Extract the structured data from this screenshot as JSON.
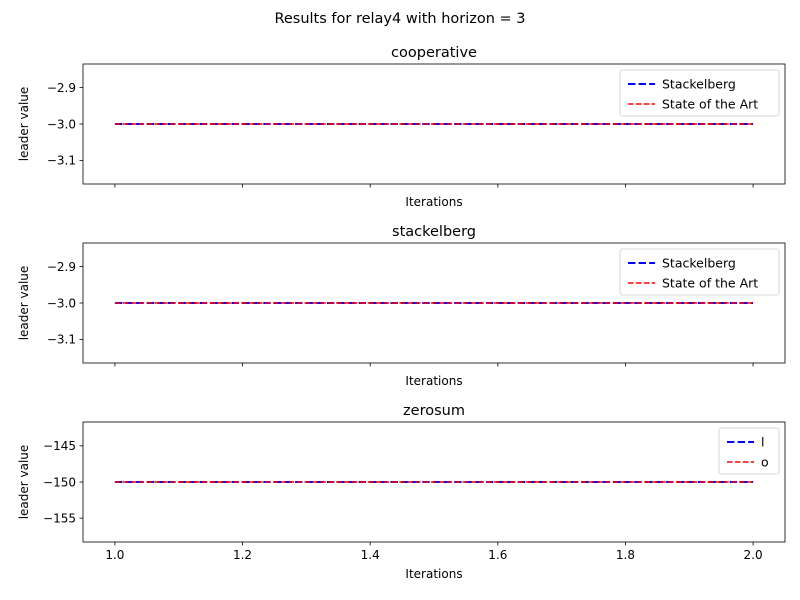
{
  "figure": {
    "suptitle": "Results for relay4 with horizon = 3"
  },
  "chart_data": [
    {
      "type": "line",
      "title": "cooperative",
      "xlabel": "Iterations",
      "ylabel": "leader value",
      "x": [
        1.0,
        2.0
      ],
      "xlim": [
        0.95,
        2.05
      ],
      "ylim": [
        -3.165,
        -2.835
      ],
      "xticks": [
        1.0,
        1.2,
        1.4,
        1.6,
        1.8,
        2.0
      ],
      "xtick_labels": [
        "",
        "",
        "",
        "",
        "",
        ""
      ],
      "yticks": [
        -2.9,
        -3.0,
        -3.1
      ],
      "ytick_labels": [
        "−2.9",
        "−3.0",
        "−3.1"
      ],
      "series": [
        {
          "name": "Stackelberg",
          "values": [
            -3.0,
            -3.0
          ],
          "color": "#0000ff",
          "style": "dashed-thick"
        },
        {
          "name": "State of the Art",
          "values": [
            -3.0,
            -3.0
          ],
          "color": "#ff0000",
          "style": "dashed"
        }
      ],
      "legend": "top-right",
      "grid": false
    },
    {
      "type": "line",
      "title": "stackelberg",
      "xlabel": "Iterations",
      "ylabel": "leader value",
      "x": [
        1.0,
        2.0
      ],
      "xlim": [
        0.95,
        2.05
      ],
      "ylim": [
        -3.165,
        -2.835
      ],
      "xticks": [
        1.0,
        1.2,
        1.4,
        1.6,
        1.8,
        2.0
      ],
      "xtick_labels": [
        "",
        "",
        "",
        "",
        "",
        ""
      ],
      "yticks": [
        -2.9,
        -3.0,
        -3.1
      ],
      "ytick_labels": [
        "−2.9",
        "−3.0",
        "−3.1"
      ],
      "series": [
        {
          "name": "Stackelberg",
          "values": [
            -3.0,
            -3.0
          ],
          "color": "#0000ff",
          "style": "dashed-thick"
        },
        {
          "name": "State of the Art",
          "values": [
            -3.0,
            -3.0
          ],
          "color": "#ff0000",
          "style": "dashed"
        }
      ],
      "legend": "top-right",
      "grid": false
    },
    {
      "type": "line",
      "title": "zerosum",
      "xlabel": "Iterations",
      "ylabel": "leader value",
      "x": [
        1.0,
        2.0
      ],
      "xlim": [
        0.95,
        2.05
      ],
      "ylim": [
        -158.3,
        -141.7
      ],
      "xticks": [
        1.0,
        1.2,
        1.4,
        1.6,
        1.8,
        2.0
      ],
      "xtick_labels": [
        "1.0",
        "1.2",
        "1.4",
        "1.6",
        "1.8",
        "2.0"
      ],
      "yticks": [
        -145,
        -150,
        -155
      ],
      "ytick_labels": [
        "−145",
        "−150",
        "−155"
      ],
      "series": [
        {
          "name": "l",
          "values": [
            -150,
            -150
          ],
          "color": "#0000ff",
          "style": "dashed-thick"
        },
        {
          "name": "o",
          "values": [
            -150,
            -150
          ],
          "color": "#ff0000",
          "style": "dashed"
        }
      ],
      "legend": "top-right",
      "grid": false
    }
  ]
}
